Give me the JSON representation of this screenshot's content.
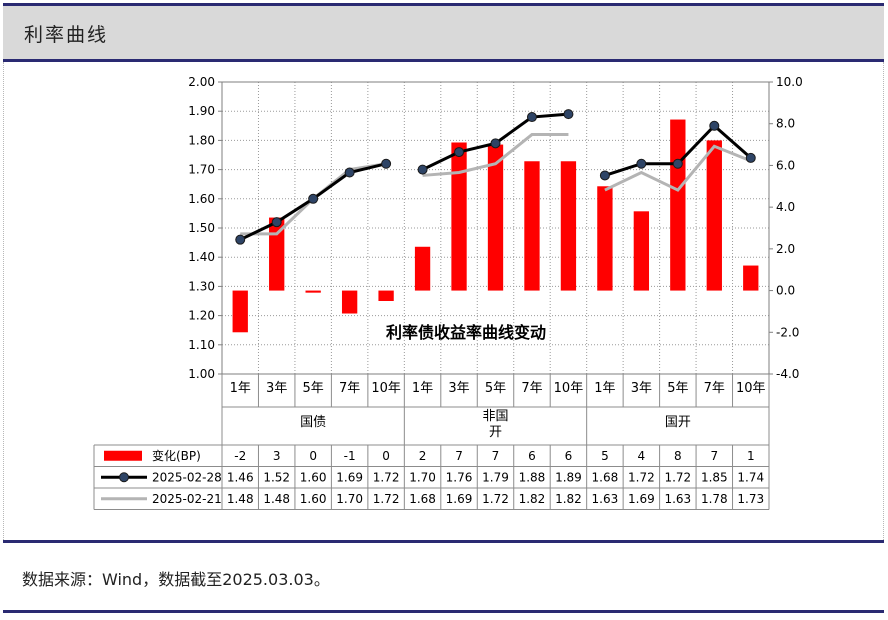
{
  "header": {
    "title": "利率曲线"
  },
  "footer": {
    "source": "数据来源：Wind，数据截至2025.03.03。"
  },
  "chart_data": {
    "type": "bar+line",
    "title": "利率债收益率曲线变动",
    "categories": [
      "1年",
      "3年",
      "5年",
      "7年",
      "10年",
      "1年",
      "3年",
      "5年",
      "7年",
      "10年",
      "1年",
      "3年",
      "5年",
      "7年",
      "10年"
    ],
    "groups": [
      {
        "name": "国债",
        "start": 0,
        "count": 5
      },
      {
        "name": "非国开",
        "start": 5,
        "count": 5
      },
      {
        "name": "国开",
        "start": 10,
        "count": 5
      }
    ],
    "left_axis": {
      "min": 1.0,
      "max": 2.0,
      "step": 0.1,
      "decimals": 2
    },
    "right_axis": {
      "min": -4.0,
      "max": 10.0,
      "step": 2.0,
      "decimals": 1
    },
    "series": [
      {
        "name": "变化(BP)",
        "kind": "bar",
        "axis": "right",
        "color": "#ff0000",
        "table_values": [
          "-2",
          "3",
          "0",
          "-1",
          "0",
          "2",
          "7",
          "7",
          "6",
          "6",
          "5",
          "4",
          "8",
          "7",
          "1"
        ],
        "values": [
          -2.0,
          3.5,
          -0.1,
          -1.1,
          -0.5,
          2.1,
          7.1,
          7.0,
          6.2,
          6.2,
          5.0,
          3.8,
          8.2,
          7.2,
          1.2
        ]
      },
      {
        "name": "2025-02-28",
        "kind": "line",
        "axis": "left",
        "color": "#000000",
        "marker": "#2e4466",
        "table_values": [
          "1.46",
          "1.52",
          "1.60",
          "1.69",
          "1.72",
          "1.70",
          "1.76",
          "1.79",
          "1.88",
          "1.89",
          "1.68",
          "1.72",
          "1.72",
          "1.85",
          "1.74"
        ],
        "values": [
          1.46,
          1.52,
          1.6,
          1.69,
          1.72,
          1.7,
          1.76,
          1.79,
          1.88,
          1.89,
          1.68,
          1.72,
          1.72,
          1.85,
          1.74
        ]
      },
      {
        "name": "2025-02-21",
        "kind": "line",
        "axis": "left",
        "color": "#b4b4b4",
        "table_values": [
          "1.48",
          "1.48",
          "1.60",
          "1.70",
          "1.72",
          "1.68",
          "1.69",
          "1.72",
          "1.82",
          "1.82",
          "1.63",
          "1.69",
          "1.63",
          "1.78",
          "1.73"
        ],
        "values": [
          1.48,
          1.48,
          1.6,
          1.7,
          1.72,
          1.68,
          1.69,
          1.72,
          1.82,
          1.82,
          1.63,
          1.69,
          1.63,
          1.78,
          1.73
        ]
      }
    ],
    "grid": true,
    "legend": "data-table"
  }
}
